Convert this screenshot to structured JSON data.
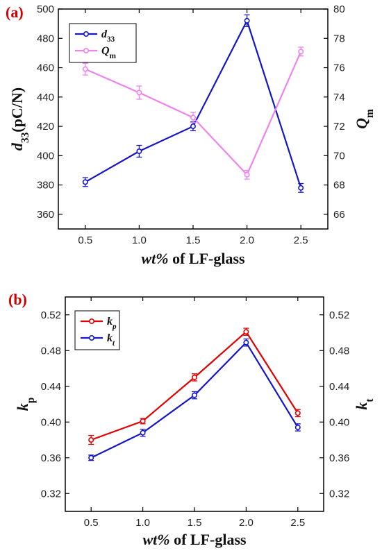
{
  "chart_data": [
    {
      "panel_label": "(a)",
      "type": "line",
      "x": [
        0.5,
        1.0,
        1.5,
        2.0,
        2.5
      ],
      "x_ticks": [
        "0.5",
        "1.0",
        "1.5",
        "2.0",
        "2.5"
      ],
      "xlabel_italic": "wt%",
      "xlabel_rest": " of LF-glass",
      "ylabel_left_main": "d",
      "ylabel_left_sub": "33",
      "ylabel_left_rest": "(pC/N)",
      "ylabel_right_main": "Q",
      "ylabel_right_sub": "m",
      "ylim_left": [
        350,
        500
      ],
      "ylim_right": [
        65,
        80
      ],
      "y_ticks_left": [
        "360",
        "380",
        "400",
        "420",
        "440",
        "460",
        "480",
        "500"
      ],
      "y_ticks_right": [
        "66",
        "68",
        "70",
        "72",
        "74",
        "76",
        "78",
        "80"
      ],
      "series": [
        {
          "name_main": "d",
          "name_sub": "33",
          "axis": "left",
          "color": "#1515c8",
          "values": [
            382,
            403,
            420,
            492,
            378
          ],
          "errors": [
            3,
            4,
            3,
            4,
            3
          ]
        },
        {
          "name_main": "Q",
          "name_sub": "m",
          "axis": "right",
          "color": "#ee82ee",
          "values": [
            75.9,
            74.3,
            72.6,
            68.7,
            77.1
          ],
          "errors": [
            0.4,
            0.45,
            0.35,
            0.3,
            0.3
          ]
        }
      ]
    },
    {
      "panel_label": "(b)",
      "type": "line",
      "x": [
        0.5,
        1.0,
        1.5,
        2.0,
        2.5
      ],
      "x_ticks": [
        "0.5",
        "1.0",
        "1.5",
        "2.0",
        "2.5"
      ],
      "xlabel_italic": "wt%",
      "xlabel_rest": " of LF-glass",
      "ylabel_left_main": "k",
      "ylabel_left_sub": "p",
      "ylabel_right_main": "k",
      "ylabel_right_sub": "t",
      "ylim_left": [
        0.3,
        0.54
      ],
      "ylim_right": [
        0.3,
        0.54
      ],
      "y_ticks_left": [
        "0.32",
        "0.36",
        "0.40",
        "0.44",
        "0.48",
        "0.52"
      ],
      "y_ticks_right": [
        "0.32",
        "0.36",
        "0.40",
        "0.44",
        "0.48",
        "0.52"
      ],
      "series": [
        {
          "name_main": "k",
          "name_sub": "p",
          "axis": "left",
          "color": "#e00000",
          "values": [
            0.38,
            0.401,
            0.45,
            0.501,
            0.41
          ],
          "errors": [
            0.005,
            0.003,
            0.004,
            0.004,
            0.004
          ]
        },
        {
          "name_main": "k",
          "name_sub": "t",
          "axis": "left",
          "color": "#1515c8",
          "values": [
            0.36,
            0.388,
            0.43,
            0.489,
            0.394
          ],
          "errors": [
            0.003,
            0.004,
            0.004,
            0.004,
            0.004
          ]
        }
      ]
    }
  ]
}
